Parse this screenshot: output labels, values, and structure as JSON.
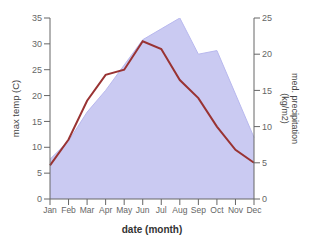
{
  "chart_data": {
    "type": "line",
    "categories": [
      "Jan",
      "Feb",
      "Mar",
      "Apr",
      "May",
      "Jun",
      "Jul",
      "Aug",
      "Sep",
      "Oct",
      "Nov",
      "Dec"
    ],
    "xlabel": "date (month)",
    "ylabel": "max temp (C)",
    "y2label": "med. precipitation\n(kg/m2)",
    "series": [
      {
        "type": "area",
        "axis": "y2",
        "color": "#b8b8ee",
        "values": [
          5.5,
          8.0,
          12.0,
          15.0,
          18.5,
          22.0,
          23.5,
          25.0,
          20.0,
          20.5,
          14.5,
          8.5
        ]
      },
      {
        "type": "line",
        "color": "#993333",
        "values": [
          6.5,
          11.5,
          19.0,
          24.0,
          25.0,
          30.5,
          29.0,
          23.0,
          19.5,
          14.0,
          9.5,
          7.0
        ]
      }
    ],
    "ylim": [
      0,
      35
    ],
    "yticks": [
      0,
      5,
      10,
      15,
      20,
      25,
      30,
      35
    ],
    "y2lim": [
      0,
      25
    ],
    "y2ticks": [
      0,
      5,
      10,
      15,
      20,
      25
    ],
    "grid": false
  }
}
